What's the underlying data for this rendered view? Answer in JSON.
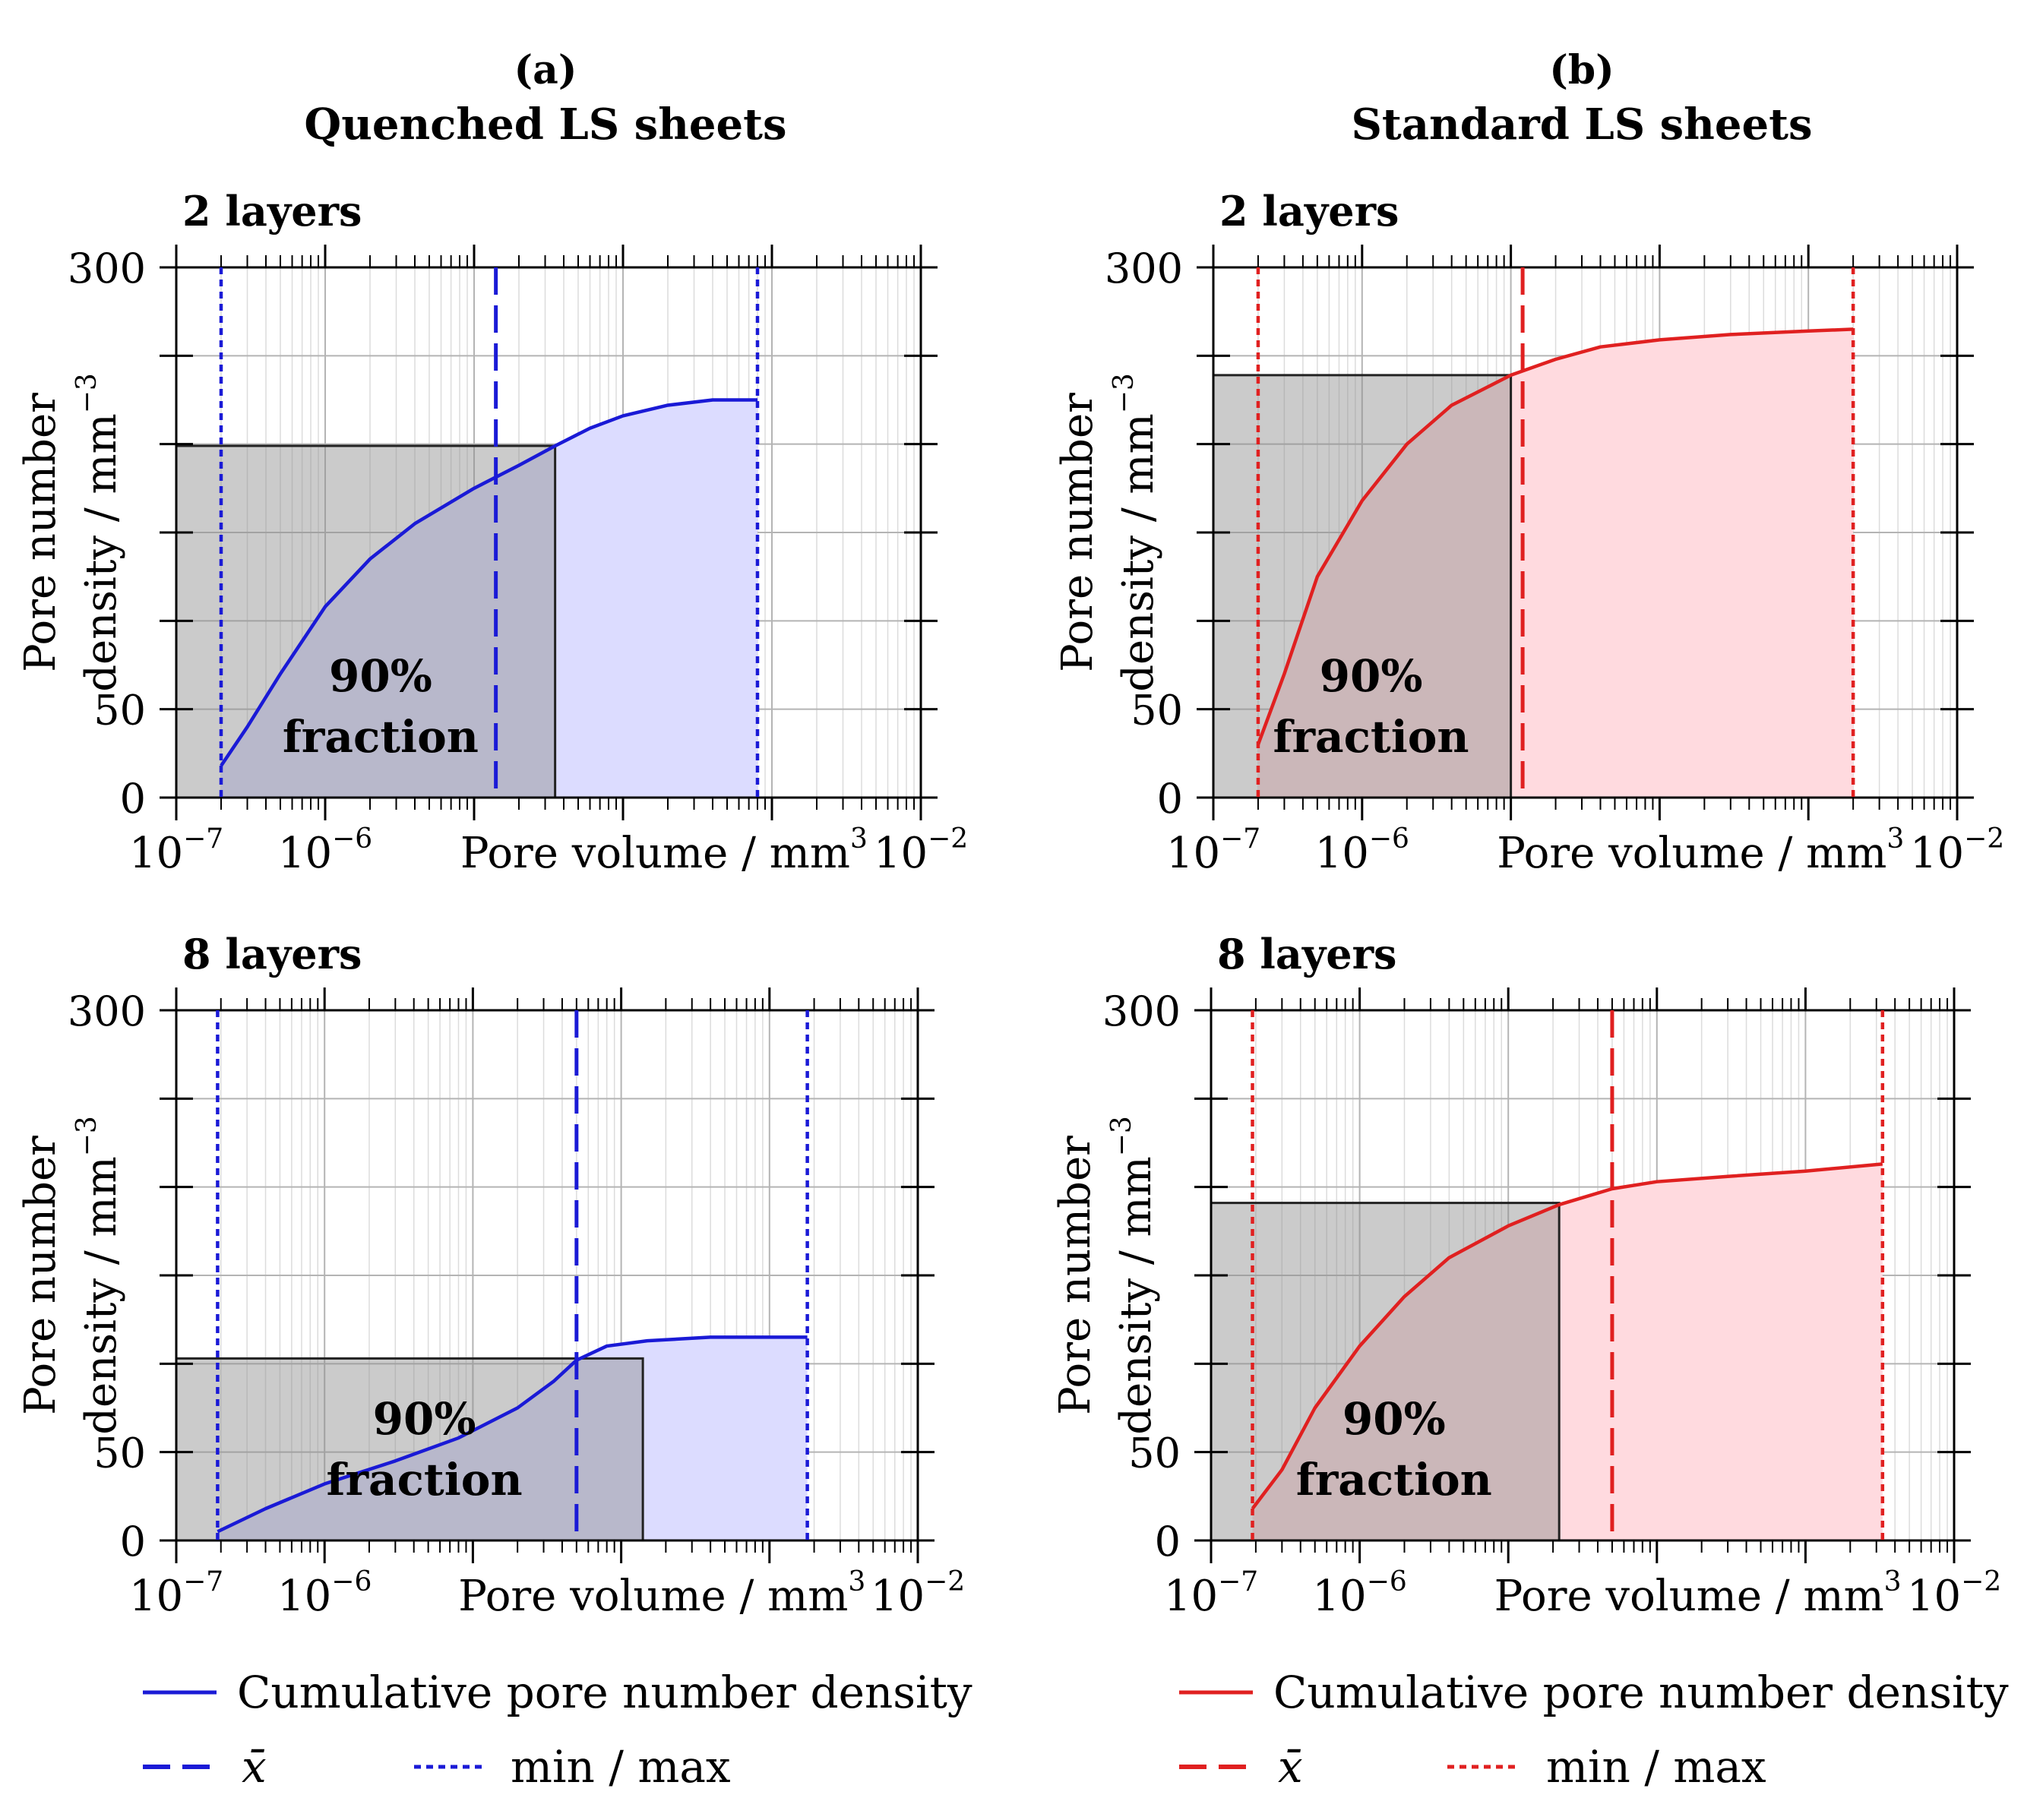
{
  "columns": [
    {
      "letter": "(a)",
      "title": "Quenched LS sheets"
    },
    {
      "letter": "(b)",
      "title": "Standard LS sheets"
    }
  ],
  "legends": [
    {
      "cumulative": "Cumulative pore number density",
      "mean": "x̄",
      "minmax": "min / max"
    },
    {
      "cumulative": "Cumulative pore number density",
      "mean": "x̄",
      "minmax": "min / max"
    }
  ],
  "colors": {
    "quenched_line": "#1a1ad6",
    "quenched_fill": "#dcdcff",
    "standard_line": "#e02020",
    "standard_fill": "#ffdadf",
    "fraction_fill": "#8c8c8c"
  },
  "chart_data": [
    {
      "type": "line",
      "id": "quenched-2-layers",
      "panel_title": "2 layers",
      "group": "Quenched LS sheets",
      "series_color": "quenched",
      "xlabel": "Pore volume / mm",
      "xlabel_exp": "3",
      "ylabel_line1": "Pore number",
      "ylabel_line2": "density / mm",
      "ylabel_exp": "-3",
      "xscale": "log",
      "xlim": [
        1e-07,
        0.01
      ],
      "ylim": [
        0,
        300
      ],
      "xtick_labels": [
        {
          "base": "10",
          "exp": "-7"
        },
        {
          "base": "10",
          "exp": "-6"
        },
        {
          "base": "10",
          "exp": "-2"
        }
      ],
      "yticks": [
        0,
        50,
        100,
        150,
        200,
        250,
        300
      ],
      "ytick_labels": [
        "0",
        "50",
        "",
        "",
        "",
        "",
        "300"
      ],
      "grid": true,
      "x": [
        2e-07,
        3e-07,
        5e-07,
        1e-06,
        2e-06,
        4e-06,
        1e-05,
        2e-05,
        3.5e-05,
        6e-05,
        0.0001,
        0.0002,
        0.0004,
        0.0008
      ],
      "y": [
        18,
        40,
        70,
        108,
        135,
        155,
        175,
        188,
        199,
        209,
        216,
        222,
        225,
        225
      ],
      "mean": 1.4e-05,
      "min": 2e-07,
      "max": 0.0008,
      "fraction_x": 3.5e-05,
      "fraction_y": 199,
      "fraction_label_line1": "90%",
      "fraction_label_line2": "fraction"
    },
    {
      "type": "line",
      "id": "standard-2-layers",
      "panel_title": "2 layers",
      "group": "Standard LS sheets",
      "series_color": "standard",
      "xlabel": "Pore volume / mm",
      "xlabel_exp": "3",
      "ylabel_line1": "Pore number",
      "ylabel_line2": "density / mm",
      "ylabel_exp": "-3",
      "xscale": "log",
      "xlim": [
        1e-07,
        0.01
      ],
      "ylim": [
        0,
        300
      ],
      "xtick_labels": [
        {
          "base": "10",
          "exp": "-7"
        },
        {
          "base": "10",
          "exp": "-6"
        },
        {
          "base": "10",
          "exp": "-2"
        }
      ],
      "yticks": [
        0,
        50,
        100,
        150,
        200,
        250,
        300
      ],
      "ytick_labels": [
        "0",
        "50",
        "",
        "",
        "",
        "",
        "300"
      ],
      "grid": true,
      "x": [
        2e-07,
        3e-07,
        5e-07,
        1e-06,
        2e-06,
        4e-06,
        1e-05,
        2e-05,
        4e-05,
        0.0001,
        0.0003,
        0.001,
        0.002
      ],
      "y": [
        30,
        70,
        125,
        168,
        200,
        222,
        239,
        248,
        255,
        259,
        262,
        264,
        265
      ],
      "mean": 1.2e-05,
      "min": 2e-07,
      "max": 0.002,
      "fraction_x": 1e-05,
      "fraction_y": 239,
      "fraction_label_line1": "90%",
      "fraction_label_line2": "fraction"
    },
    {
      "type": "line",
      "id": "quenched-8-layers",
      "panel_title": "8 layers",
      "group": "Quenched LS sheets",
      "series_color": "quenched",
      "xlabel": "Pore volume / mm",
      "xlabel_exp": "3",
      "ylabel_line1": "Pore number",
      "ylabel_line2": "density / mm",
      "ylabel_exp": "-3",
      "xscale": "log",
      "xlim": [
        1e-07,
        0.01
      ],
      "ylim": [
        0,
        300
      ],
      "xtick_labels": [
        {
          "base": "10",
          "exp": "-7"
        },
        {
          "base": "10",
          "exp": "-6"
        },
        {
          "base": "10",
          "exp": "-2"
        }
      ],
      "yticks": [
        0,
        50,
        100,
        150,
        200,
        250,
        300
      ],
      "ytick_labels": [
        "0",
        "50",
        "",
        "",
        "",
        "",
        "300"
      ],
      "grid": true,
      "x": [
        1.9e-07,
        4e-07,
        1e-06,
        3e-06,
        8e-06,
        2e-05,
        3.5e-05,
        5e-05,
        8e-05,
        0.00015,
        0.0004,
        0.0008,
        0.0018
      ],
      "y": [
        5,
        18,
        32,
        45,
        58,
        75,
        90,
        102,
        110,
        113,
        115,
        115,
        115
      ],
      "mean": 5e-05,
      "min": 1.9e-07,
      "max": 0.0018,
      "fraction_x": 0.00014,
      "fraction_y": 103,
      "fraction_label_line1": "90%",
      "fraction_label_line2": "fraction"
    },
    {
      "type": "line",
      "id": "standard-8-layers",
      "panel_title": "8 layers",
      "group": "Standard LS sheets",
      "series_color": "standard",
      "xlabel": "Pore volume / mm",
      "xlabel_exp": "3",
      "ylabel_line1": "Pore number",
      "ylabel_line2": "density / mm",
      "ylabel_exp": "-3",
      "xscale": "log",
      "xlim": [
        1e-07,
        0.01
      ],
      "ylim": [
        0,
        300
      ],
      "xtick_labels": [
        {
          "base": "10",
          "exp": "-7"
        },
        {
          "base": "10",
          "exp": "-6"
        },
        {
          "base": "10",
          "exp": "-2"
        }
      ],
      "yticks": [
        0,
        50,
        100,
        150,
        200,
        250,
        300
      ],
      "ytick_labels": [
        "0",
        "50",
        "",
        "",
        "",
        "",
        "300"
      ],
      "grid": true,
      "x": [
        1.9e-07,
        3e-07,
        5e-07,
        1e-06,
        2e-06,
        4e-06,
        1e-05,
        2.2e-05,
        5e-05,
        0.0001,
        0.0003,
        0.001,
        0.0033
      ],
      "y": [
        18,
        40,
        75,
        110,
        138,
        160,
        178,
        190,
        199,
        203,
        206,
        209,
        213
      ],
      "mean": 5e-05,
      "min": 1.9e-07,
      "max": 0.0033,
      "fraction_x": 2.2e-05,
      "fraction_y": 191,
      "fraction_label_line1": "90%",
      "fraction_label_line2": "fraction"
    }
  ]
}
